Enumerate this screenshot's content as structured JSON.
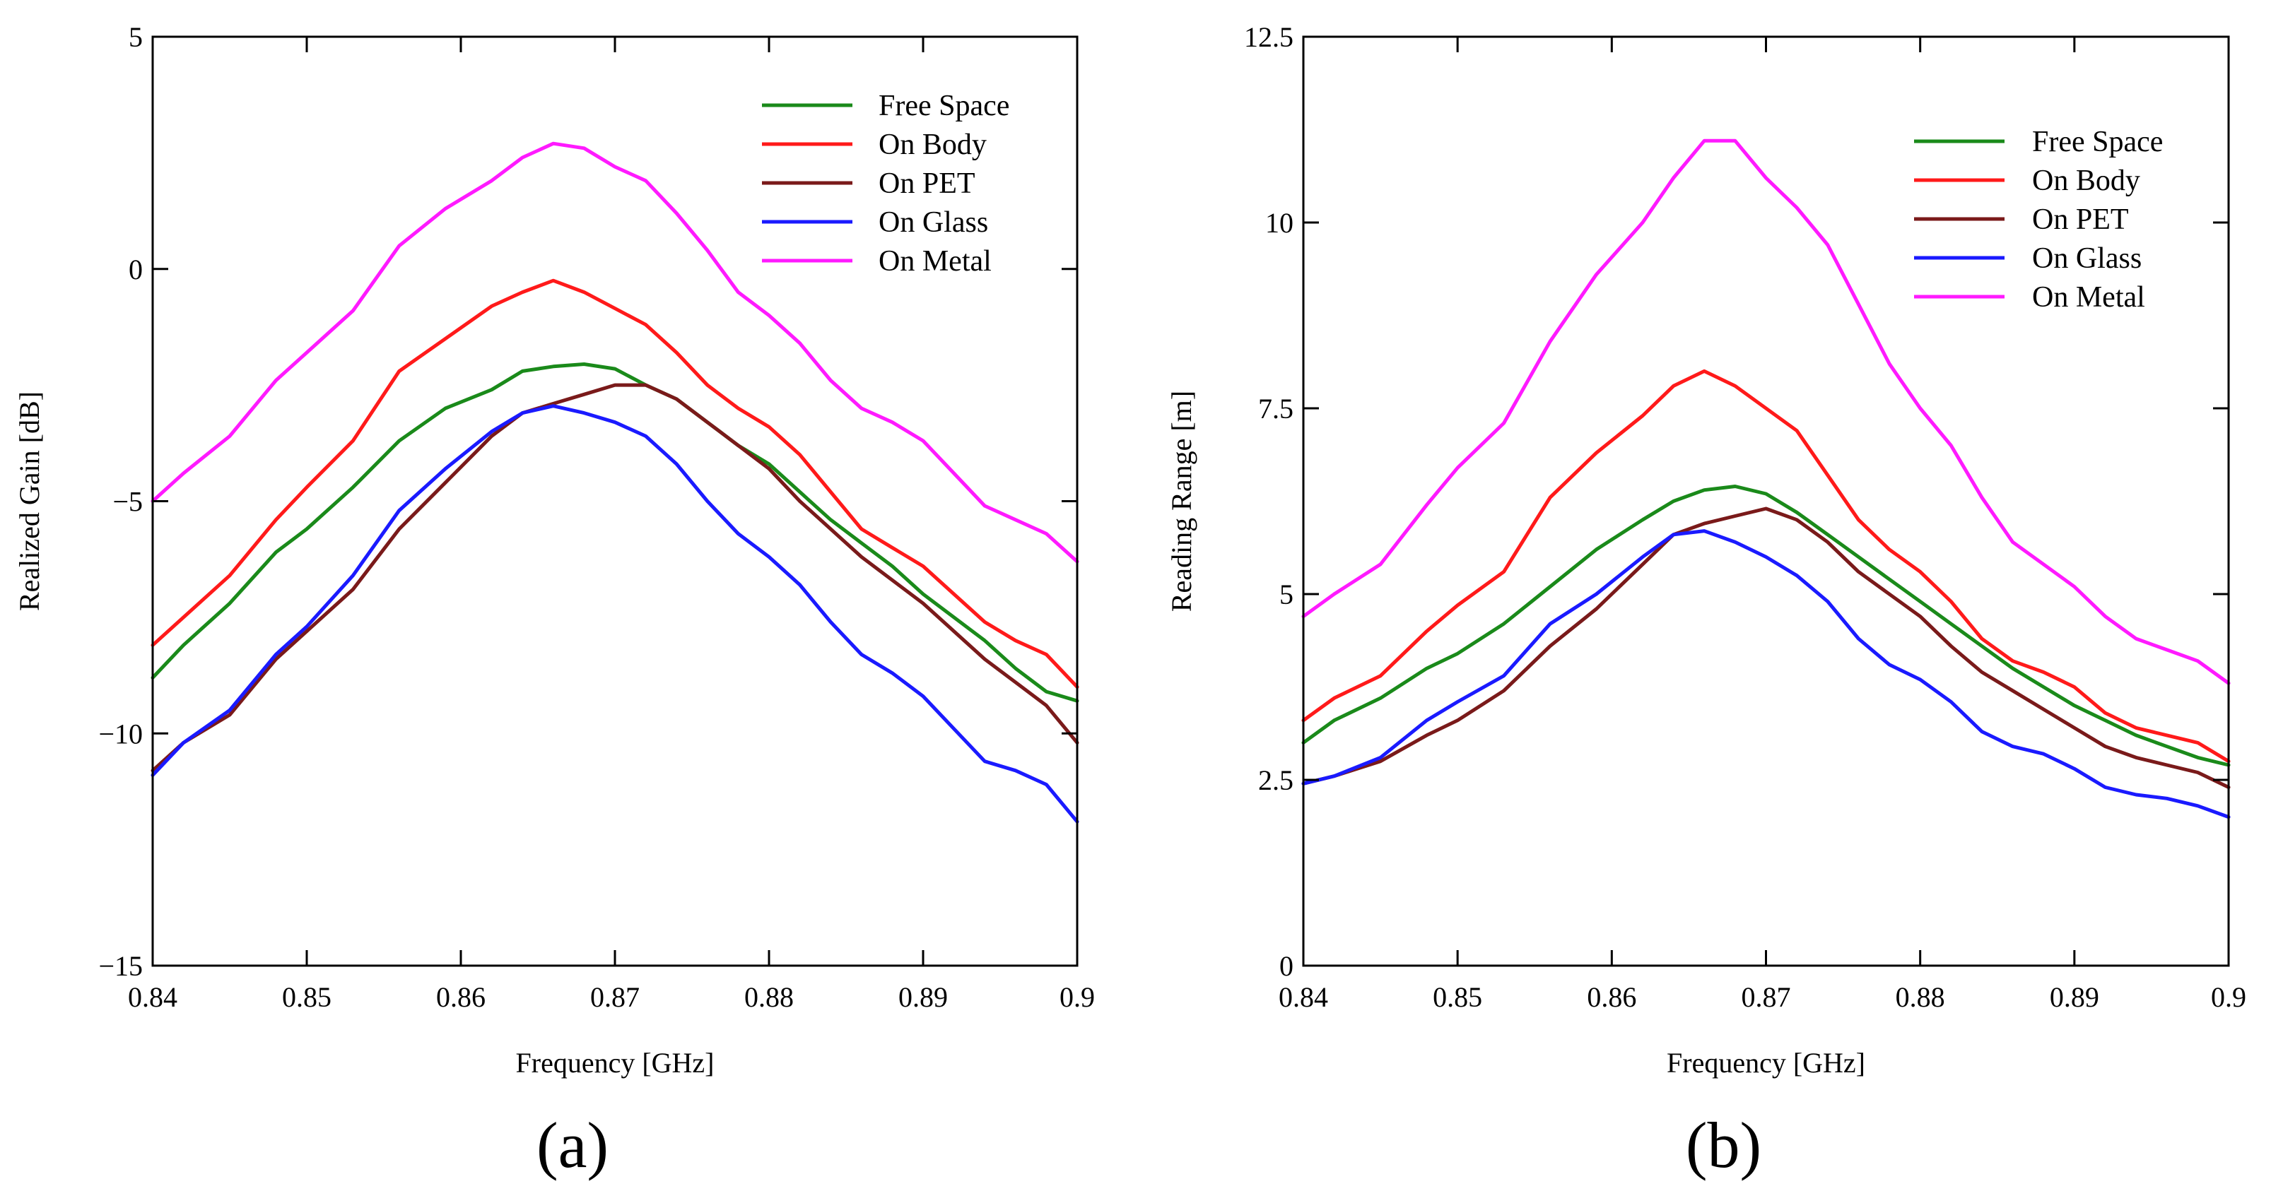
{
  "chart_data": [
    {
      "type": "line",
      "panel_label": "(a)",
      "xlabel": "Frequency [GHz]",
      "ylabel": "Realized Gain [dB]",
      "xlim": [
        0.84,
        0.9
      ],
      "ylim": [
        -15,
        5
      ],
      "xticks": [
        0.84,
        0.85,
        0.86,
        0.87,
        0.88,
        0.89,
        0.9
      ],
      "xtick_labels": [
        "0.84",
        "0.85",
        "0.86",
        "0.87",
        "0.88",
        "0.89",
        "0.9"
      ],
      "yticks": [
        5,
        0,
        -5,
        -10,
        -15
      ],
      "ytick_labels": [
        "5",
        "0",
        "−5",
        "−10",
        "−15"
      ],
      "grid": false,
      "legend_position": "top-right",
      "x": [
        0.84,
        0.842,
        0.845,
        0.848,
        0.85,
        0.853,
        0.856,
        0.859,
        0.862,
        0.864,
        0.866,
        0.868,
        0.87,
        0.872,
        0.874,
        0.876,
        0.878,
        0.88,
        0.882,
        0.884,
        0.886,
        0.888,
        0.89,
        0.892,
        0.894,
        0.896,
        0.898,
        0.9
      ],
      "series": [
        {
          "name": "Free Space",
          "color": "#1a8a1a",
          "values": [
            -8.8,
            -8.1,
            -7.2,
            -6.1,
            -5.6,
            -4.7,
            -3.7,
            -3.0,
            -2.6,
            -2.2,
            -2.1,
            -2.05,
            -2.15,
            -2.5,
            -2.8,
            -3.3,
            -3.8,
            -4.2,
            -4.8,
            -5.4,
            -5.9,
            -6.4,
            -7.0,
            -7.5,
            -8.0,
            -8.6,
            -9.1,
            -9.3
          ]
        },
        {
          "name": "On Body",
          "color": "#ff1a1a",
          "values": [
            -8.1,
            -7.5,
            -6.6,
            -5.4,
            -4.7,
            -3.7,
            -2.2,
            -1.5,
            -0.8,
            -0.5,
            -0.25,
            -0.5,
            -0.85,
            -1.2,
            -1.8,
            -2.5,
            -3.0,
            -3.4,
            -4.0,
            -4.8,
            -5.6,
            -6.0,
            -6.4,
            -7.0,
            -7.6,
            -8.0,
            -8.3,
            -9.0
          ]
        },
        {
          "name": "On PET",
          "color": "#7a1a1a",
          "values": [
            -10.8,
            -10.2,
            -9.6,
            -8.4,
            -7.8,
            -6.9,
            -5.6,
            -4.6,
            -3.6,
            -3.1,
            -2.9,
            -2.7,
            -2.5,
            -2.5,
            -2.8,
            -3.3,
            -3.8,
            -4.3,
            -5.0,
            -5.6,
            -6.2,
            -6.7,
            -7.2,
            -7.8,
            -8.4,
            -8.9,
            -9.4,
            -10.2
          ]
        },
        {
          "name": "On Glass",
          "color": "#1a1aff",
          "values": [
            -10.9,
            -10.2,
            -9.5,
            -8.3,
            -7.7,
            -6.6,
            -5.2,
            -4.3,
            -3.5,
            -3.1,
            -2.95,
            -3.1,
            -3.3,
            -3.6,
            -4.2,
            -5.0,
            -5.7,
            -6.2,
            -6.8,
            -7.6,
            -8.3,
            -8.7,
            -9.2,
            -9.9,
            -10.6,
            -10.8,
            -11.1,
            -11.9
          ]
        },
        {
          "name": "On Metal",
          "color": "#ff1aff",
          "values": [
            -5.0,
            -4.4,
            -3.6,
            -2.4,
            -1.8,
            -0.9,
            0.5,
            1.3,
            1.9,
            2.4,
            2.7,
            2.6,
            2.2,
            1.9,
            1.2,
            0.4,
            -0.5,
            -1.0,
            -1.6,
            -2.4,
            -3.0,
            -3.3,
            -3.7,
            -4.4,
            -5.1,
            -5.4,
            -5.7,
            -6.3
          ]
        }
      ]
    },
    {
      "type": "line",
      "panel_label": "(b)",
      "xlabel": "Frequency [GHz]",
      "ylabel": "Reading Range [m]",
      "xlim": [
        0.84,
        0.9
      ],
      "ylim": [
        0,
        12.5
      ],
      "xticks": [
        0.84,
        0.85,
        0.86,
        0.87,
        0.88,
        0.89,
        0.9
      ],
      "xtick_labels": [
        "0.84",
        "0.85",
        "0.86",
        "0.87",
        "0.88",
        "0.89",
        "0.9"
      ],
      "yticks": [
        12.5,
        10,
        7.5,
        5,
        2.5,
        0
      ],
      "ytick_labels": [
        "12.5",
        "10",
        "7.5",
        "5",
        "2.5",
        "0"
      ],
      "grid": false,
      "legend_position": "top-right",
      "x": [
        0.84,
        0.842,
        0.845,
        0.848,
        0.85,
        0.853,
        0.856,
        0.859,
        0.862,
        0.864,
        0.866,
        0.868,
        0.87,
        0.872,
        0.874,
        0.876,
        0.878,
        0.88,
        0.882,
        0.884,
        0.886,
        0.888,
        0.89,
        0.892,
        0.894,
        0.896,
        0.898,
        0.9
      ],
      "series": [
        {
          "name": "Free Space",
          "color": "#1a8a1a",
          "values": [
            3.0,
            3.3,
            3.6,
            4.0,
            4.2,
            4.6,
            5.1,
            5.6,
            6.0,
            6.25,
            6.4,
            6.45,
            6.35,
            6.1,
            5.8,
            5.5,
            5.2,
            4.9,
            4.6,
            4.3,
            4.0,
            3.75,
            3.5,
            3.3,
            3.1,
            2.95,
            2.8,
            2.7
          ]
        },
        {
          "name": "On Body",
          "color": "#ff1a1a",
          "values": [
            3.3,
            3.6,
            3.9,
            4.5,
            4.85,
            5.3,
            6.3,
            6.9,
            7.4,
            7.8,
            8.0,
            7.8,
            7.5,
            7.2,
            6.6,
            6.0,
            5.6,
            5.3,
            4.9,
            4.4,
            4.1,
            3.95,
            3.75,
            3.4,
            3.2,
            3.1,
            3.0,
            2.75
          ]
        },
        {
          "name": "On PET",
          "color": "#7a1a1a",
          "values": [
            2.45,
            2.55,
            2.75,
            3.1,
            3.3,
            3.7,
            4.3,
            4.8,
            5.4,
            5.8,
            5.95,
            6.05,
            6.15,
            6.0,
            5.7,
            5.3,
            5.0,
            4.7,
            4.3,
            3.95,
            3.7,
            3.45,
            3.2,
            2.95,
            2.8,
            2.7,
            2.6,
            2.4
          ]
        },
        {
          "name": "On Glass",
          "color": "#1a1aff",
          "values": [
            2.45,
            2.55,
            2.8,
            3.3,
            3.55,
            3.9,
            4.6,
            5.0,
            5.5,
            5.8,
            5.85,
            5.7,
            5.5,
            5.25,
            4.9,
            4.4,
            4.05,
            3.85,
            3.55,
            3.15,
            2.95,
            2.85,
            2.65,
            2.4,
            2.3,
            2.25,
            2.15,
            2.0
          ]
        },
        {
          "name": "On Metal",
          "color": "#ff1aff",
          "values": [
            4.7,
            5.0,
            5.4,
            6.2,
            6.7,
            7.3,
            8.4,
            9.3,
            10.0,
            10.6,
            11.1,
            11.1,
            10.6,
            10.2,
            9.7,
            8.9,
            8.1,
            7.5,
            7.0,
            6.3,
            5.7,
            5.4,
            5.1,
            4.7,
            4.4,
            4.25,
            4.1,
            3.8
          ]
        }
      ]
    }
  ]
}
